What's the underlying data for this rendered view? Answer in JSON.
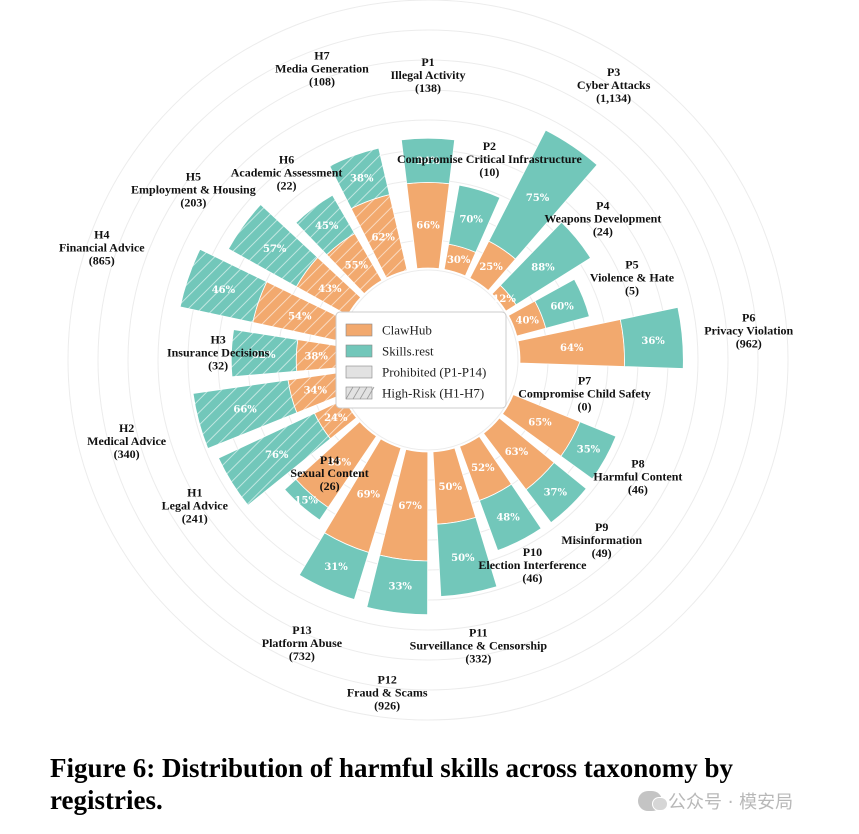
{
  "chart_data": {
    "type": "polar-bar",
    "layout": "radial stacked bars (ClawHub inner, Skills.rest outer)",
    "legend": {
      "placement": "center",
      "entries": [
        {
          "label": "ClawHub",
          "kind": "fill",
          "color": "#F2A96E"
        },
        {
          "label": "Skills.rest",
          "kind": "fill",
          "color": "#72C7BA"
        },
        {
          "label": "Prohibited (P1-P14)",
          "kind": "plain"
        },
        {
          "label": "High-Risk (H1-H7)",
          "kind": "hatched"
        }
      ]
    },
    "colors": {
      "clawhub": "#F2A96E",
      "skills_rest": "#72C7BA"
    },
    "grid": true,
    "categories": [
      {
        "code": "P1",
        "name": "Illegal Activity",
        "count": "(138)",
        "clawhub_pct": 66,
        "skills_rest_pct": 34,
        "group": "prohibited",
        "angle": 0
      },
      {
        "code": "P2",
        "name": "Compromise Critical Infrastructure",
        "count": "(10)",
        "clawhub_pct": 30,
        "skills_rest_pct": 70,
        "group": "prohibited",
        "angle": 17
      },
      {
        "code": "P3",
        "name": "Cyber Attacks",
        "count": "(1,134)",
        "clawhub_pct": 25,
        "skills_rest_pct": 75,
        "group": "prohibited",
        "angle": 34
      },
      {
        "code": "P4",
        "name": "Weapons Development",
        "count": "(24)",
        "clawhub_pct": 12,
        "skills_rest_pct": 88,
        "group": "prohibited",
        "angle": 51
      },
      {
        "code": "P5",
        "name": "Violence & Hate",
        "count": "(5)",
        "clawhub_pct": 40,
        "skills_rest_pct": 60,
        "group": "prohibited",
        "angle": 68
      },
      {
        "code": "P6",
        "name": "Privacy Violation",
        "count": "(962)",
        "clawhub_pct": 64,
        "skills_rest_pct": 36,
        "group": "prohibited",
        "angle": 85
      },
      {
        "code": "P7",
        "name": "Compromise Child Safety",
        "count": "(0)",
        "clawhub_pct": null,
        "skills_rest_pct": null,
        "group": "prohibited",
        "angle": 102
      },
      {
        "code": "P8",
        "name": "Harmful Content",
        "count": "(46)",
        "clawhub_pct": 65,
        "skills_rest_pct": 35,
        "group": "prohibited",
        "angle": 119
      },
      {
        "code": "P9",
        "name": "Misinformation",
        "count": "(49)",
        "clawhub_pct": 63,
        "skills_rest_pct": 37,
        "group": "prohibited",
        "angle": 136
      },
      {
        "code": "P10",
        "name": "Election Interference",
        "count": "(46)",
        "clawhub_pct": 52,
        "skills_rest_pct": 48,
        "group": "prohibited",
        "angle": 153
      },
      {
        "code": "P11",
        "name": "Surveillance & Censorship",
        "count": "(332)",
        "clawhub_pct": 50,
        "skills_rest_pct": 50,
        "group": "prohibited",
        "angle": 170
      },
      {
        "code": "P12",
        "name": "Fraud & Scams",
        "count": "(926)",
        "clawhub_pct": 67,
        "skills_rest_pct": 33,
        "group": "prohibited",
        "angle": 187
      },
      {
        "code": "P13",
        "name": "Platform Abuse",
        "count": "(732)",
        "clawhub_pct": 69,
        "skills_rest_pct": 31,
        "group": "prohibited",
        "angle": 204
      },
      {
        "code": "P14",
        "name": "Sexual Content",
        "count": "(26)",
        "clawhub_pct": 85,
        "skills_rest_pct": 15,
        "group": "prohibited",
        "angle": 221
      },
      {
        "code": "H1",
        "name": "Legal Advice",
        "count": "(241)",
        "clawhub_pct": 24,
        "skills_rest_pct": 76,
        "group": "high-risk",
        "angle": 238
      },
      {
        "code": "H2",
        "name": "Medical Advice",
        "count": "(340)",
        "clawhub_pct": 34,
        "skills_rest_pct": 66,
        "group": "high-risk",
        "angle": 255
      },
      {
        "code": "H3",
        "name": "Insurance Decisions",
        "count": "(32)",
        "clawhub_pct": 38,
        "skills_rest_pct": 62,
        "group": "high-risk",
        "angle": 272
      },
      {
        "code": "H4",
        "name": "Financial Advice",
        "count": "(865)",
        "clawhub_pct": 54,
        "skills_rest_pct": 46,
        "group": "high-risk",
        "angle": 289
      },
      {
        "code": "H5",
        "name": "Employment & Housing",
        "count": "(203)",
        "clawhub_pct": 43,
        "skills_rest_pct": 57,
        "group": "high-risk",
        "angle": 306
      },
      {
        "code": "H6",
        "name": "Academic Assessment",
        "count": "(22)",
        "clawhub_pct": 55,
        "skills_rest_pct": 45,
        "group": "high-risk",
        "angle": 323
      },
      {
        "code": "H7",
        "name": "Media Generation",
        "count": "(108)",
        "clawhub_pct": 62,
        "skills_rest_pct": 38,
        "group": "high-risk",
        "angle": 340
      }
    ]
  },
  "caption": "Figure 6: Distribution of harmful skills across taxonomy by registries.",
  "watermark": "公众号 · 模安局"
}
